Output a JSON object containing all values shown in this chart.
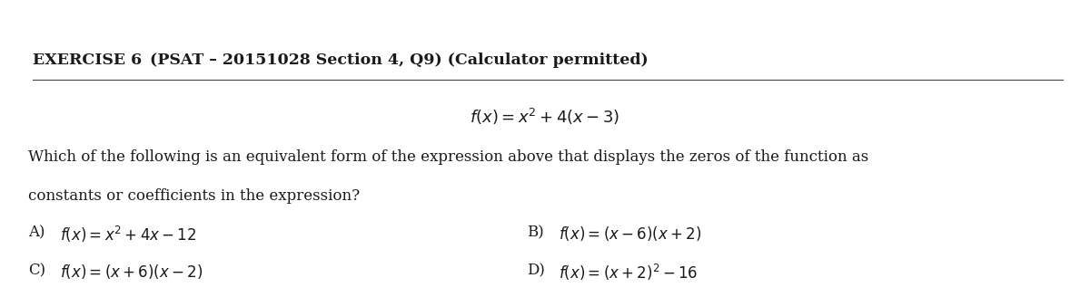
{
  "bg_color": "#ffffff",
  "text_color": "#1a1a1a",
  "title_bold": "EXERCISE 6",
  "title_normal": "    (PSAT – 20151028 Section 4, Q9) (Calculator permitted)",
  "formula": "$f(x) = x^2 + 4(x - 3)$",
  "question_line1": "Which of the following is an equivalent form of the expression above that displays the zeros of the function as",
  "question_line2": "constants or coefficients in the expression?",
  "choice_A_label": "A)",
  "choice_A_text": "$f(x) = x^2 + 4x - 12$",
  "choice_B_label": "B)",
  "choice_B_text": "$f(x) = (x - 6)(x + 2)$",
  "choice_C_label": "C)",
  "choice_C_text": "$f(x) = (x + 6)(x - 2)$",
  "choice_D_label": "D)",
  "choice_D_text": "$f(x) = (x + 2)^2 - 16$",
  "title_fontsize": 12.5,
  "formula_fontsize": 13,
  "question_fontsize": 12,
  "choice_fontsize": 12,
  "figwidth": 12.0,
  "figheight": 3.28,
  "dpi": 100
}
